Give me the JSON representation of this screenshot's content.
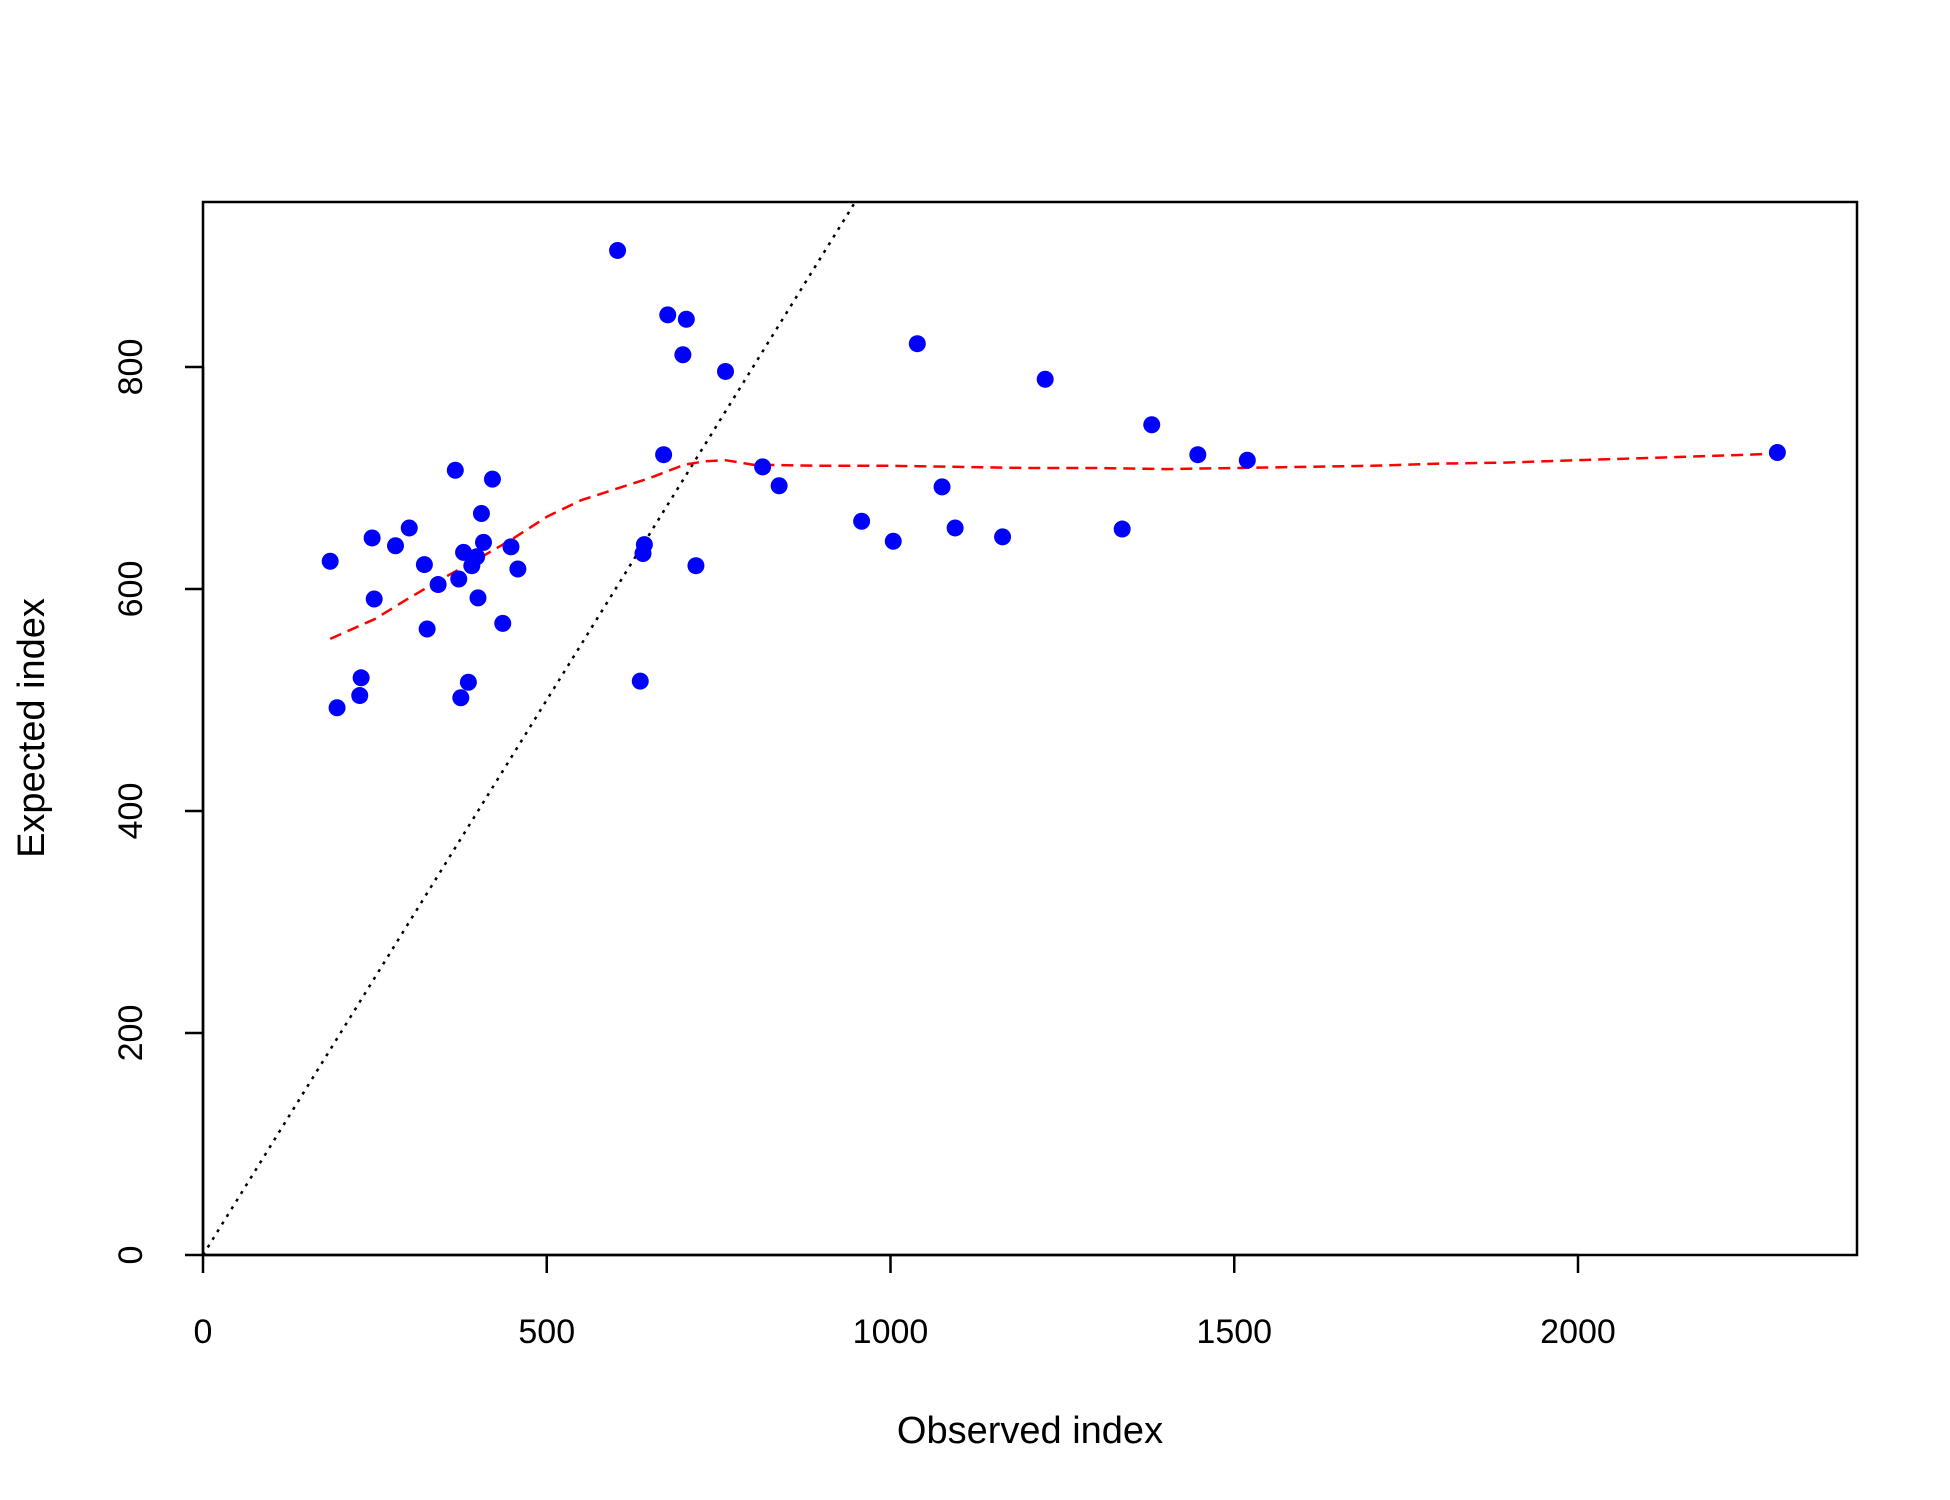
{
  "chart_data": {
    "type": "scatter",
    "title": "",
    "xlabel": "Observed index",
    "ylabel": "Expected index",
    "xlim": [
      0,
      2400
    ],
    "ylim": [
      0,
      950
    ],
    "xticks": [
      0,
      500,
      1000,
      1500,
      2000
    ],
    "yticks": [
      0,
      200,
      400,
      600,
      800
    ],
    "xtick_labels": [
      "0",
      "500",
      "1000",
      "1500",
      "2000"
    ],
    "ytick_labels": [
      "0",
      "200",
      "400",
      "600",
      "800"
    ],
    "grid": false,
    "legend": "none",
    "colors": {
      "points": "#0000ff",
      "smooth": "#ff0000",
      "reference": "#000000"
    },
    "points": [
      [
        185,
        625
      ],
      [
        195,
        493
      ],
      [
        228,
        504
      ],
      [
        230,
        520
      ],
      [
        246,
        646
      ],
      [
        249,
        591
      ],
      [
        280,
        639
      ],
      [
        300,
        655
      ],
      [
        322,
        622
      ],
      [
        326,
        564
      ],
      [
        342,
        604
      ],
      [
        367,
        707
      ],
      [
        372,
        609
      ],
      [
        375,
        502
      ],
      [
        379,
        633
      ],
      [
        386,
        516
      ],
      [
        391,
        621
      ],
      [
        398,
        629
      ],
      [
        400,
        592
      ],
      [
        405,
        668
      ],
      [
        408,
        642
      ],
      [
        421,
        699
      ],
      [
        436,
        569
      ],
      [
        448,
        638
      ],
      [
        458,
        618
      ],
      [
        603,
        905
      ],
      [
        636,
        517
      ],
      [
        640,
        632
      ],
      [
        642,
        640
      ],
      [
        670,
        721
      ],
      [
        676,
        847
      ],
      [
        698,
        811
      ],
      [
        703,
        843
      ],
      [
        717,
        621
      ],
      [
        760,
        796
      ],
      [
        814,
        710
      ],
      [
        838,
        693
      ],
      [
        958,
        661
      ],
      [
        1004,
        643
      ],
      [
        1039,
        821
      ],
      [
        1075,
        692
      ],
      [
        1094,
        655
      ],
      [
        1163,
        647
      ],
      [
        1225,
        789
      ],
      [
        1337,
        654
      ],
      [
        1380,
        748
      ],
      [
        1447,
        721
      ],
      [
        1519,
        716
      ],
      [
        2290,
        723
      ]
    ],
    "smooth_line": [
      [
        185,
        555
      ],
      [
        250,
        573
      ],
      [
        300,
        592
      ],
      [
        350,
        610
      ],
      [
        400,
        627
      ],
      [
        450,
        645
      ],
      [
        500,
        665
      ],
      [
        550,
        680
      ],
      [
        600,
        690
      ],
      [
        650,
        700
      ],
      [
        700,
        712
      ],
      [
        730,
        715
      ],
      [
        760,
        716
      ],
      [
        800,
        712
      ],
      [
        900,
        711
      ],
      [
        1000,
        711
      ],
      [
        1100,
        710
      ],
      [
        1200,
        709
      ],
      [
        1300,
        709
      ],
      [
        1400,
        708
      ],
      [
        1500,
        709
      ],
      [
        1600,
        710
      ],
      [
        1700,
        711
      ],
      [
        1800,
        713
      ],
      [
        1900,
        714
      ],
      [
        2000,
        716
      ],
      [
        2100,
        718
      ],
      [
        2200,
        720
      ],
      [
        2290,
        722
      ]
    ],
    "reference_line": {
      "slope": 1,
      "intercept": 0,
      "style": "dotted"
    }
  }
}
